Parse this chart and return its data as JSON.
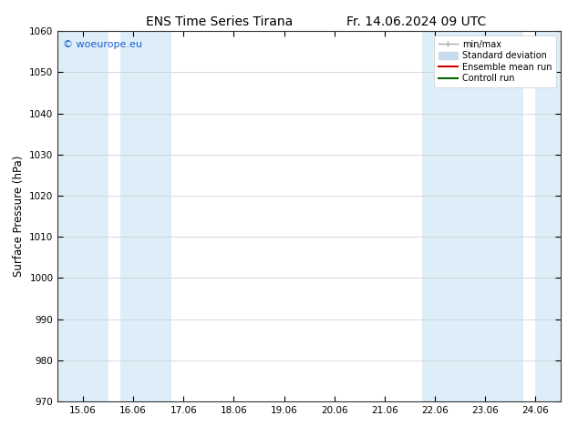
{
  "title_left": "ENS Time Series Tirana",
  "title_right": "Fr. 14.06.2024 09 UTC",
  "ylabel": "Surface Pressure (hPa)",
  "ylim": [
    970,
    1060
  ],
  "yticks": [
    970,
    980,
    990,
    1000,
    1010,
    1020,
    1030,
    1040,
    1050,
    1060
  ],
  "xtick_labels": [
    "15.06",
    "16.06",
    "17.06",
    "18.06",
    "19.06",
    "20.06",
    "21.06",
    "22.06",
    "23.06",
    "24.06"
  ],
  "xtick_positions": [
    0,
    1,
    2,
    3,
    4,
    5,
    6,
    7,
    8,
    9
  ],
  "xlim": [
    -0.5,
    9.5
  ],
  "shaded_bands": [
    {
      "xmin": -0.5,
      "xmax": 0.5
    },
    {
      "xmin": 0.75,
      "xmax": 1.75
    },
    {
      "xmin": 6.75,
      "xmax": 7.75
    },
    {
      "xmin": 7.75,
      "xmax": 8.75
    },
    {
      "xmin": 9.0,
      "xmax": 9.5
    }
  ],
  "shaded_color": "#ddeef8",
  "watermark": "© woeurope.eu",
  "watermark_color": "#1a5cd6",
  "legend_entries": [
    {
      "label": "min/max",
      "color": "#a8a8a8",
      "style": "errorbar"
    },
    {
      "label": "Standard deviation",
      "color": "#c8dced",
      "style": "patch"
    },
    {
      "label": "Ensemble mean run",
      "color": "#cc0000",
      "style": "line"
    },
    {
      "label": "Controll run",
      "color": "#006600",
      "style": "line"
    }
  ],
  "background_color": "#ffffff",
  "grid_color": "#cccccc",
  "font_family": "DejaVu Sans"
}
